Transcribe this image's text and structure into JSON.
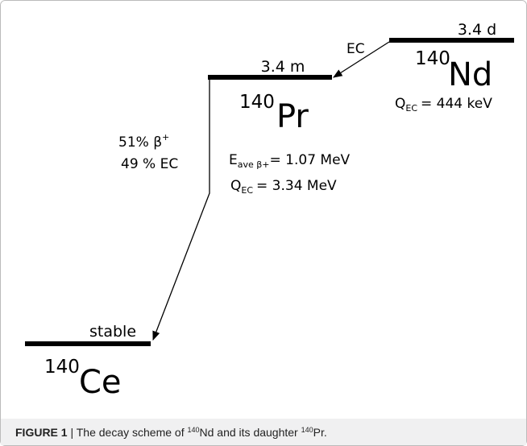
{
  "levels": [
    {
      "half_life": "3.4 d",
      "mass": "140",
      "element": "Nd",
      "q_symbol": "Q",
      "q_sub": "EC",
      "q_value": "= 444 keV"
    },
    {
      "half_life": "3.4 m",
      "mass": "140",
      "element": "Pr",
      "branch_beta": "51% β",
      "branch_beta_sup": "+",
      "branch_ec": "49 % EC",
      "e_symbol": "E",
      "e_sub": "ave β+",
      "e_value": "= 1.07 MeV",
      "q_symbol": "Q",
      "q_sub": "EC",
      "q_value": "= 3.34 MeV"
    },
    {
      "half_life": "stable",
      "mass": "140",
      "element": "Ce"
    }
  ],
  "transitions": [
    {
      "label": "EC"
    }
  ],
  "caption": {
    "label": "FIGURE 1",
    "text_1": " | The decay scheme of ",
    "mass_1": "140",
    "text_2": "Nd and its daughter ",
    "mass_2": "140",
    "text_3": "Pr."
  }
}
